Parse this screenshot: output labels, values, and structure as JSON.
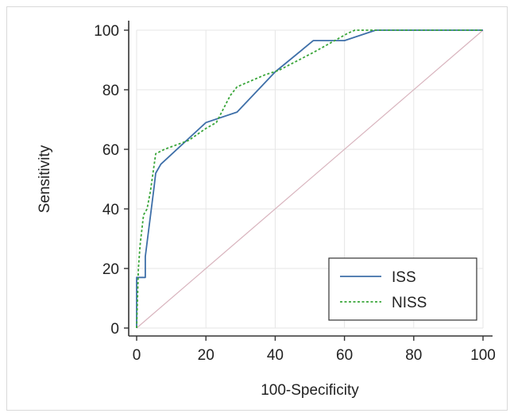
{
  "chart_data": {
    "type": "line",
    "xlabel": "100-Specificity",
    "ylabel": "Sensitivity",
    "xlim": [
      0,
      100
    ],
    "ylim": [
      0,
      100
    ],
    "xticks": [
      0,
      20,
      40,
      60,
      80,
      100
    ],
    "yticks": [
      0,
      20,
      40,
      60,
      80,
      100
    ],
    "grid": true,
    "legend_position": "bottom-right",
    "reference_line": {
      "x": [
        0,
        100
      ],
      "y": [
        0,
        100
      ],
      "color": "#d8b3bd"
    },
    "series": [
      {
        "name": "ISS",
        "color": "#3e6fa8",
        "style": "solid",
        "x": [
          0,
          0,
          2.5,
          2.5,
          5,
          5.5,
          7,
          20,
          29,
          40,
          51,
          60,
          69,
          100
        ],
        "y": [
          0,
          17,
          17,
          24,
          47,
          52,
          55,
          69,
          72.5,
          86,
          96.5,
          96.5,
          100,
          100
        ]
      },
      {
        "name": "NISS",
        "color": "#3aa63a",
        "style": "dashed",
        "x": [
          0,
          0.5,
          1,
          2,
          2.5,
          3,
          4,
          5.5,
          8,
          15,
          20,
          23,
          27,
          29,
          31,
          33,
          37,
          41,
          51,
          61,
          63,
          69,
          100
        ],
        "y": [
          0,
          20,
          28,
          38,
          39,
          40,
          46,
          58.5,
          60,
          63,
          67,
          69,
          78,
          81,
          82,
          83,
          85,
          86.5,
          92.5,
          99,
          100,
          100,
          100
        ]
      }
    ]
  }
}
